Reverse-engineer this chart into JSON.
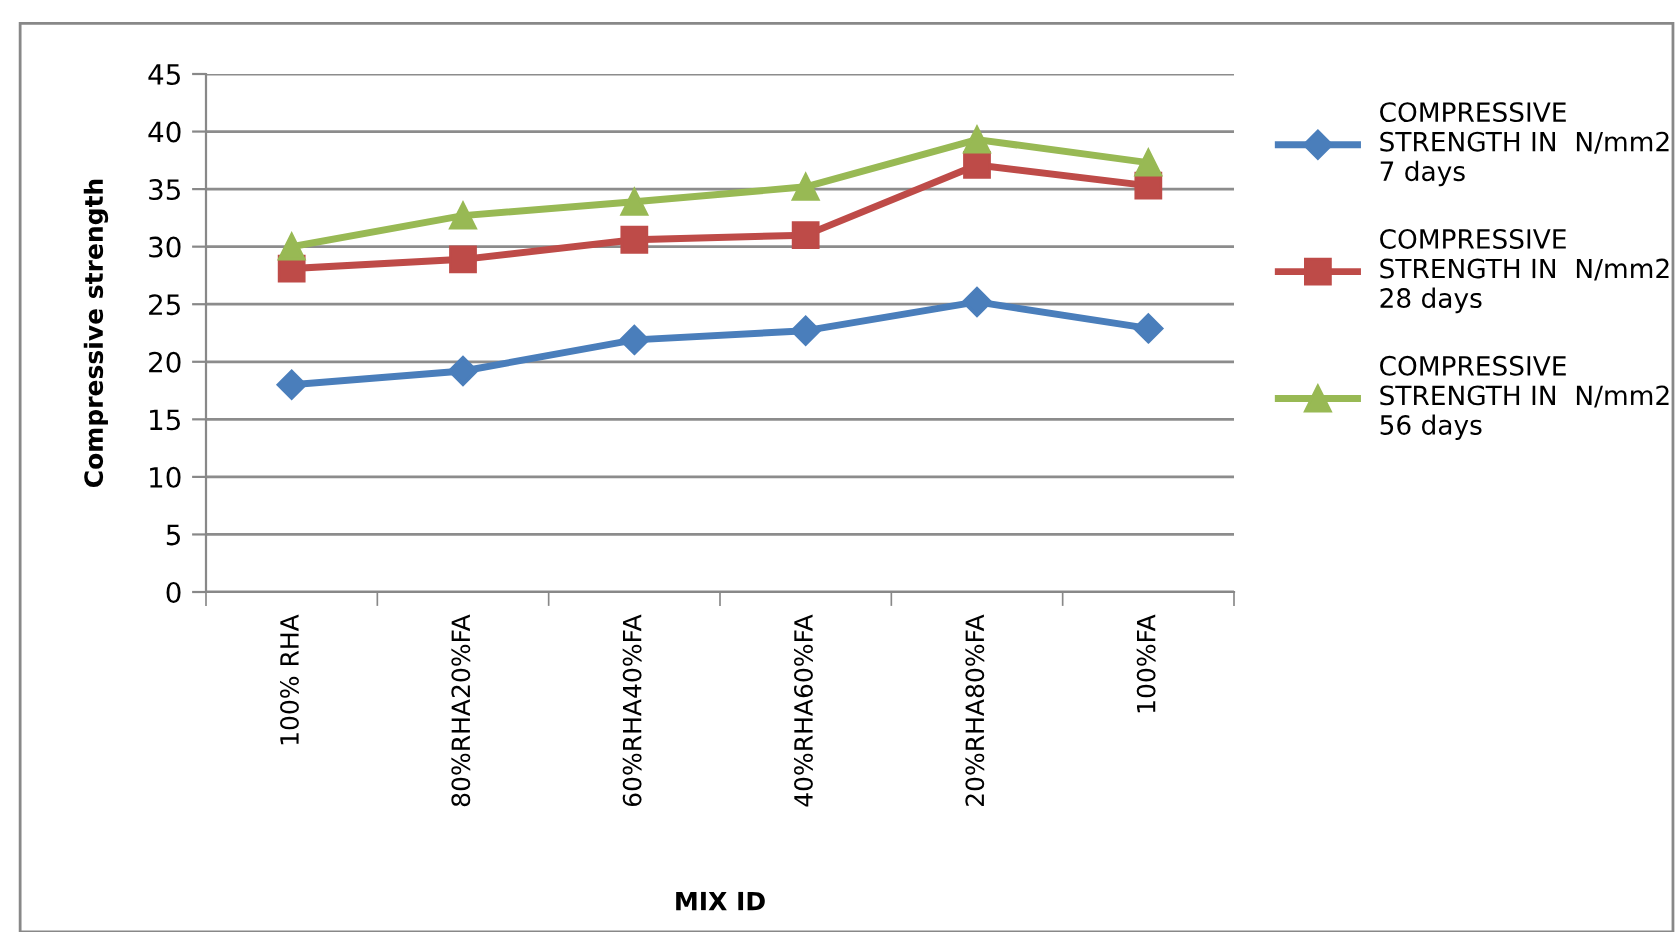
{
  "chart_data": {
    "type": "line",
    "xlabel": "MIX ID",
    "ylabel": "Compressive strength",
    "categories": [
      "100% RHA",
      "80%RHA20%FA",
      "60%RHA40%FA",
      "40%RHA60%FA",
      "20%RHA80%FA",
      "100%FA"
    ],
    "series": [
      {
        "name": "COMPRESSIVE\nSTRENGTH IN  N/mm2\n7 days",
        "color": "#4a7ebb",
        "marker": "diamond",
        "values": [
          18.0,
          19.2,
          21.9,
          22.7,
          25.2,
          22.9
        ]
      },
      {
        "name": "COMPRESSIVE\nSTRENGTH IN  N/mm2\n28 days",
        "color": "#be4b48",
        "marker": "square",
        "values": [
          28.1,
          28.9,
          30.6,
          31.0,
          37.1,
          35.3
        ]
      },
      {
        "name": "COMPRESSIVE\nSTRENGTH IN  N/mm2\n56 days",
        "color": "#98b954",
        "marker": "triangle",
        "values": [
          30.0,
          32.7,
          33.9,
          35.2,
          39.3,
          37.3
        ]
      }
    ],
    "ylim": [
      0,
      45
    ],
    "yticks": [
      0,
      5,
      10,
      15,
      20,
      25,
      30,
      35,
      40,
      45
    ],
    "grid": "y",
    "legend": "right",
    "line_style": "solid"
  }
}
